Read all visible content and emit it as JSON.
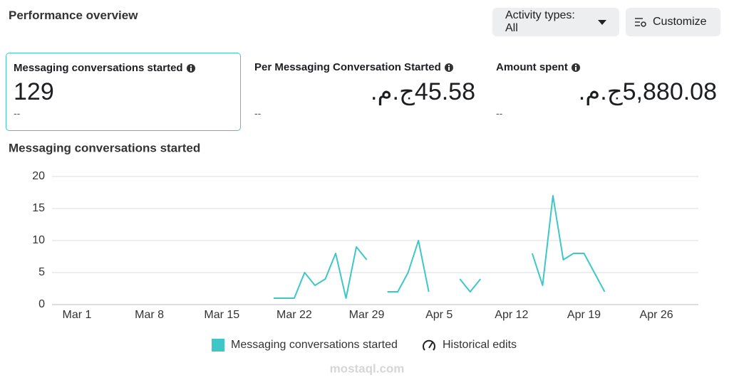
{
  "header": {
    "title": "Performance overview"
  },
  "buttons": [
    "Activity types: All",
    "Customize"
  ],
  "metrics": [
    {
      "label": "Messaging conversations started",
      "value": "129",
      "sub": "--"
    },
    {
      "label": "Per Messaging Conversation Started",
      "value": "45.58ج.م.",
      "sub": "--"
    },
    {
      "label": "Amount spent",
      "value": "5,880.08ج.م.",
      "sub": "--"
    }
  ],
  "chart_data": {
    "type": "line",
    "title": "Messaging conversations started",
    "categories": [
      null,
      null,
      "Mar 1",
      null,
      null,
      null,
      null,
      null,
      null,
      "Mar 8",
      null,
      null,
      null,
      null,
      null,
      null,
      "Mar 15",
      null,
      null,
      null,
      null,
      null,
      null,
      "Mar 22",
      null,
      null,
      null,
      null,
      null,
      null,
      "Mar 29",
      null,
      null,
      null,
      null,
      null,
      null,
      "Apr 5",
      null,
      null,
      null,
      null,
      null,
      null,
      "Apr 12",
      null,
      null,
      null,
      null,
      null,
      null,
      "Apr 19",
      null,
      null,
      null,
      null,
      null,
      null,
      "Apr 26",
      null,
      null
    ],
    "series": [
      {
        "name": "Messaging conversations started",
        "color": "#3fc7c7",
        "values": [
          null,
          null,
          null,
          null,
          null,
          null,
          null,
          null,
          null,
          null,
          null,
          null,
          null,
          null,
          null,
          null,
          null,
          null,
          null,
          null,
          null,
          1,
          1,
          1,
          5,
          3,
          4,
          8,
          1,
          9,
          7,
          null,
          2,
          2,
          5,
          10,
          2,
          null,
          null,
          4,
          2,
          4,
          null,
          null,
          null,
          null,
          8,
          3,
          17,
          7,
          8,
          8,
          5,
          2,
          null,
          null,
          null,
          null,
          null,
          null,
          null
        ]
      }
    ],
    "ylim": [
      0,
      20
    ],
    "yticks": [
      0,
      5,
      10,
      15,
      20
    ],
    "grid": true,
    "historical_edits_label": "Historical edits"
  },
  "watermark": "mostaql.com"
}
